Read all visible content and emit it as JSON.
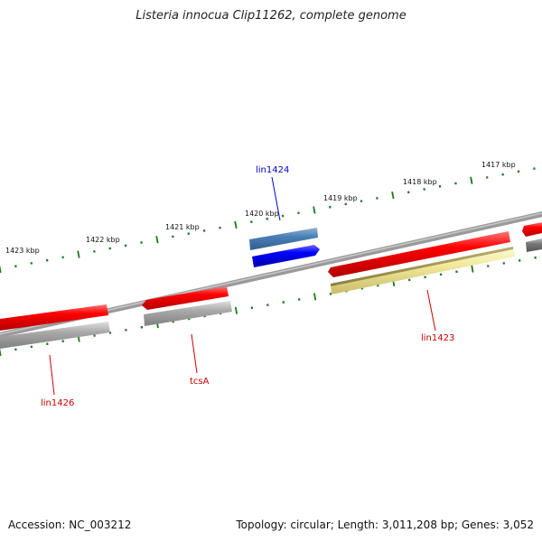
{
  "title": "Listeria innocua Clip11262, complete genome",
  "footer": {
    "accession": "Accession: NC_003212",
    "stats": "Topology: circular; Length: 3,011,208 bp; Genes: 3,052"
  },
  "ticks": [
    "1423 kbp",
    "1422 kbp",
    "1421 kbp",
    "1420 kbp",
    "1419 kbp",
    "1418 kbp",
    "1417 kbp"
  ],
  "genes": [
    {
      "name": "lin1424",
      "color": "#0000cc"
    },
    {
      "name": "lin1423",
      "color": "#cc0000"
    },
    {
      "name": "tcsA",
      "color": "#cc0000"
    },
    {
      "name": "lin1426",
      "color": "#cc0000"
    }
  ],
  "colors": {
    "cds_forward": "#ff0000",
    "cds_reverse": "#0000ff",
    "rna": "#4b7fb5",
    "backbone": "#777777",
    "tick": "#1a7a1a",
    "grey_feature": "#a8a8a8",
    "yellow_feature": "#f2e89a"
  }
}
